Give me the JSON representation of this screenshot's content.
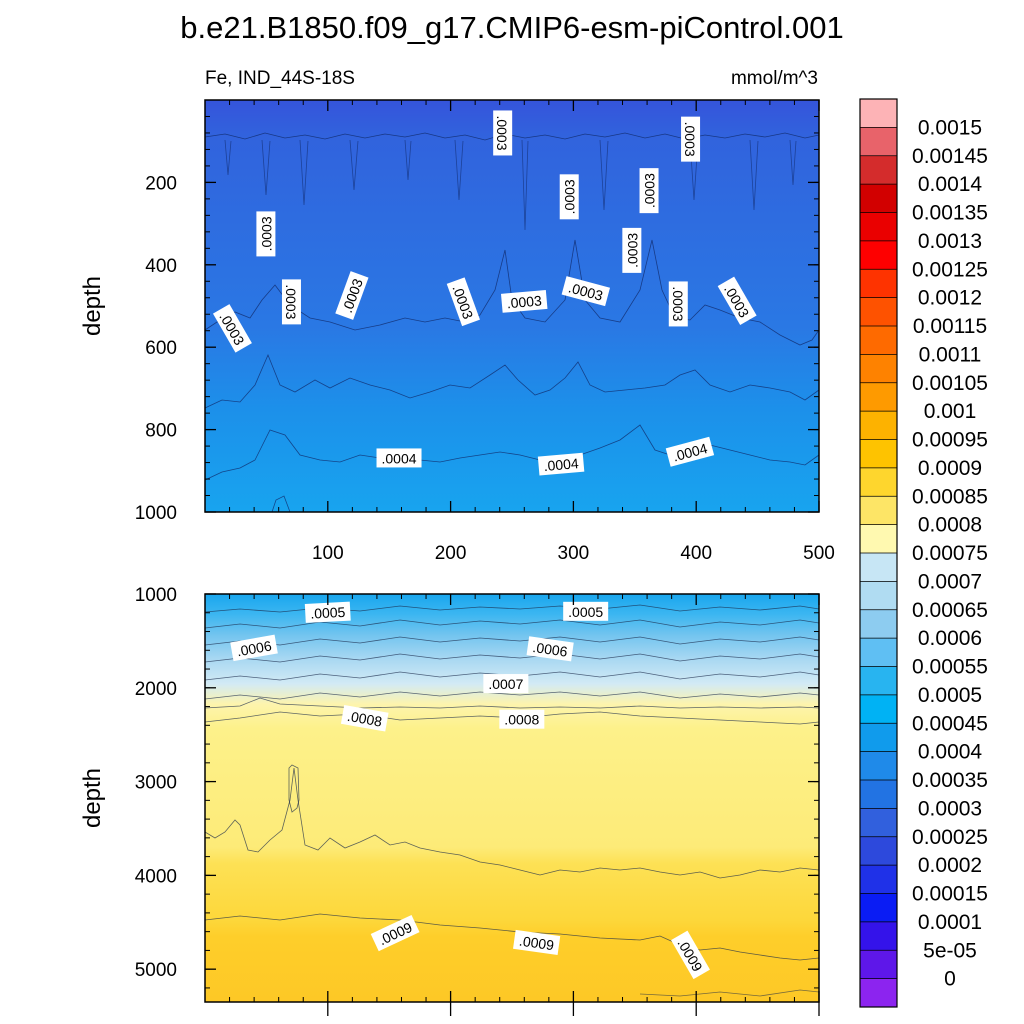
{
  "figure_title": "b.e21.B1850.f09_g17.CMIP6-esm-piControl.001",
  "chart_data": [
    {
      "type": "contour",
      "panel": "upper",
      "title_left": "Fe, IND_44S-18S",
      "title_right": "mmol/m^3",
      "ylabel": "depth",
      "xlabel": "",
      "xlim": [
        0,
        500
      ],
      "ylim": [
        0,
        1000
      ],
      "y_inverted": true,
      "x_ticks": [
        100,
        200,
        300,
        400,
        500
      ],
      "x_tick_labels": [
        "100",
        "200",
        "300",
        "400",
        "500"
      ],
      "y_ticks": [
        200,
        400,
        600,
        800,
        1000
      ],
      "y_tick_labels": [
        "200",
        "400",
        "600",
        "800",
        "1000"
      ],
      "contour_labels": [
        {
          "x": 242,
          "y": 80,
          "text": ".0003",
          "angle": 90
        },
        {
          "x": 395,
          "y": 95,
          "text": ".0003",
          "angle": 90
        },
        {
          "x": 297,
          "y": 235,
          "text": ".0003",
          "angle": -90
        },
        {
          "x": 362,
          "y": 220,
          "text": ".0003",
          "angle": -90
        },
        {
          "x": 50,
          "y": 325,
          "text": ".0003",
          "angle": -90
        },
        {
          "x": 348,
          "y": 365,
          "text": ".0003",
          "angle": -90
        },
        {
          "x": 70,
          "y": 490,
          "text": ".0003",
          "angle": 90
        },
        {
          "x": 120,
          "y": 475,
          "text": ".0003",
          "angle": -70
        },
        {
          "x": 22,
          "y": 555,
          "text": ".0003",
          "angle": 60
        },
        {
          "x": 210,
          "y": 490,
          "text": ".0003",
          "angle": 70
        },
        {
          "x": 260,
          "y": 490,
          "text": ".0003",
          "angle": -5
        },
        {
          "x": 310,
          "y": 465,
          "text": ".0003",
          "angle": 15
        },
        {
          "x": 385,
          "y": 495,
          "text": ".0003",
          "angle": 90
        },
        {
          "x": 433,
          "y": 488,
          "text": ".0003",
          "angle": 60
        },
        {
          "x": 158,
          "y": 870,
          "text": ".0004",
          "angle": 0
        },
        {
          "x": 290,
          "y": 885,
          "text": ".0004",
          "angle": -5
        },
        {
          "x": 395,
          "y": 855,
          "text": ".0004",
          "angle": -15
        }
      ]
    },
    {
      "type": "contour",
      "panel": "lower",
      "ylabel": "depth",
      "xlim": [
        0,
        500
      ],
      "ylim": [
        1000,
        5350
      ],
      "y_inverted": true,
      "y_ticks": [
        1000,
        2000,
        3000,
        4000,
        5000
      ],
      "y_tick_labels": [
        "1000",
        "2000",
        "3000",
        "4000",
        "5000"
      ],
      "contour_labels": [
        {
          "x": 100,
          "y": 1200,
          "text": ".0005",
          "angle": -3
        },
        {
          "x": 310,
          "y": 1190,
          "text": ".0005",
          "angle": 0
        },
        {
          "x": 40,
          "y": 1580,
          "text": ".0006",
          "angle": -10
        },
        {
          "x": 281,
          "y": 1590,
          "text": ".0006",
          "angle": 8
        },
        {
          "x": 245,
          "y": 1960,
          "text": ".0007",
          "angle": 0
        },
        {
          "x": 130,
          "y": 2330,
          "text": ".0008",
          "angle": 10
        },
        {
          "x": 258,
          "y": 2340,
          "text": ".0008",
          "angle": 0
        },
        {
          "x": 155,
          "y": 4620,
          "text": ".0009",
          "angle": -25
        },
        {
          "x": 270,
          "y": 4720,
          "text": ".0009",
          "angle": 8
        },
        {
          "x": 395,
          "y": 4850,
          "text": ".0009",
          "angle": 60
        }
      ]
    }
  ],
  "colorbar": {
    "labels": [
      "0.0015",
      "0.00145",
      "0.0014",
      "0.00135",
      "0.0013",
      "0.00125",
      "0.0012",
      "0.00115",
      "0.0011",
      "0.00105",
      "0.001",
      "0.00095",
      "0.0009",
      "0.00085",
      "0.0008",
      "0.00075",
      "0.0007",
      "0.00065",
      "0.0006",
      "0.00055",
      "0.0005",
      "0.00045",
      "0.0004",
      "0.00035",
      "0.0003",
      "0.00025",
      "0.0002",
      "0.00015",
      "0.0001",
      "5e-05",
      "0"
    ],
    "colors": [
      "#fdb3b6",
      "#e8636a",
      "#d42c2c",
      "#d20000",
      "#ea0000",
      "#fe0000",
      "#fe3300",
      "#fe5200",
      "#fe6a00",
      "#fe8200",
      "#fe9a00",
      "#fdb200",
      "#fec300",
      "#fed62d",
      "#fde566",
      "#fff9b0",
      "#c7e6f5",
      "#b0dcf2",
      "#8dccf0",
      "#5fbff3",
      "#28b4f0",
      "#00b2f4",
      "#109bec",
      "#1f8ae9",
      "#2273e3",
      "#3160dd",
      "#2d49dc",
      "#1f31e8",
      "#0a1cf4",
      "#3413ea",
      "#5e17e9",
      "#8c24ef"
    ]
  }
}
